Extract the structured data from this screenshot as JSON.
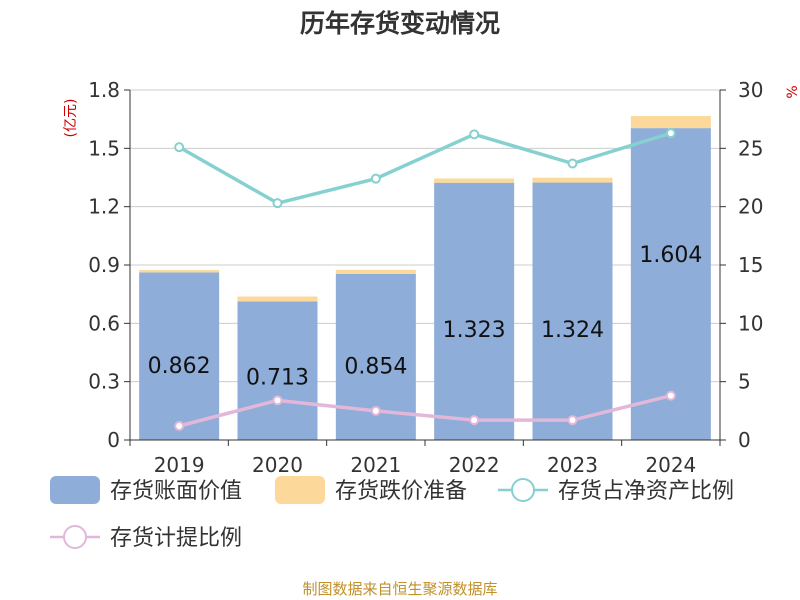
{
  "chart_data": {
    "type": "bar",
    "title": "历年存货变动情况",
    "left_unit": "(亿元)",
    "right_unit": "%",
    "categories": [
      "2019",
      "2020",
      "2021",
      "2022",
      "2023",
      "2024"
    ],
    "y_left": {
      "min": 0,
      "max": 1.8,
      "ticks": [
        "0",
        "0.3",
        "0.6",
        "0.9",
        "1.2",
        "1.5",
        "1.8"
      ]
    },
    "y_right": {
      "min": 0,
      "max": 30,
      "ticks": [
        "0",
        "5",
        "10",
        "15",
        "20",
        "25",
        "30"
      ]
    },
    "grid": true,
    "legend_position": "bottom",
    "series": [
      {
        "name": "存货账面价值",
        "kind": "bar",
        "axis": "left",
        "color": "#8eadd9",
        "values": [
          0.862,
          0.713,
          0.854,
          1.323,
          1.324,
          1.604
        ],
        "labels": [
          "0.862",
          "0.713",
          "0.854",
          "1.323",
          "1.324",
          "1.604"
        ]
      },
      {
        "name": "存货跌价准备",
        "kind": "bar-stacked",
        "axis": "left",
        "color": "#fcd99a",
        "values": [
          0.012,
          0.025,
          0.021,
          0.022,
          0.025,
          0.062
        ]
      },
      {
        "name": "存货占净资产比例",
        "kind": "line",
        "axis": "right",
        "color": "#86d0d2",
        "values": [
          25.1,
          20.3,
          22.4,
          26.2,
          23.7,
          26.3
        ]
      },
      {
        "name": "存货计提比例",
        "kind": "line",
        "axis": "right",
        "color": "#e3b7d9",
        "values": [
          1.2,
          3.4,
          2.5,
          1.7,
          1.7,
          3.8
        ]
      }
    ],
    "source": "制图数据来自恒生聚源数据库"
  }
}
